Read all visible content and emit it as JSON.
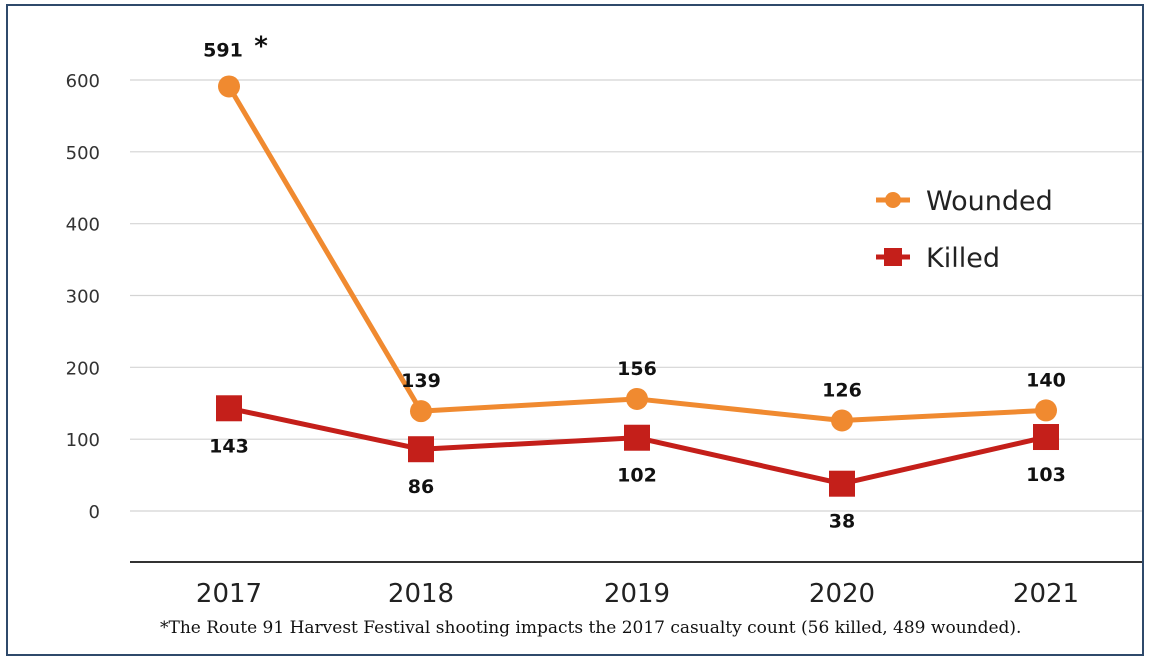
{
  "chart_data": {
    "type": "line",
    "categories": [
      "2017",
      "2018",
      "2019",
      "2020",
      "2021"
    ],
    "series": [
      {
        "name": "Wounded",
        "values": [
          591,
          139,
          156,
          126,
          140
        ],
        "color": "#f08a30",
        "marker": "circle",
        "labels": [
          "591",
          "139",
          "156",
          "126",
          "140"
        ]
      },
      {
        "name": "Killed",
        "values": [
          143,
          86,
          102,
          38,
          103
        ],
        "color": "#c41f1a",
        "marker": "square",
        "labels": [
          "143",
          "86",
          "102",
          "38",
          "103"
        ]
      }
    ],
    "yticks": [
      "0",
      "100",
      "200",
      "300",
      "400",
      "500",
      "600"
    ],
    "ylim": [
      0,
      600
    ],
    "grid": true,
    "legend_position": "right",
    "annotation_marker": "*",
    "footnote": "*The Route 91 Harvest Festival shooting impacts the 2017 casualty count (56 killed, 489 wounded)."
  }
}
